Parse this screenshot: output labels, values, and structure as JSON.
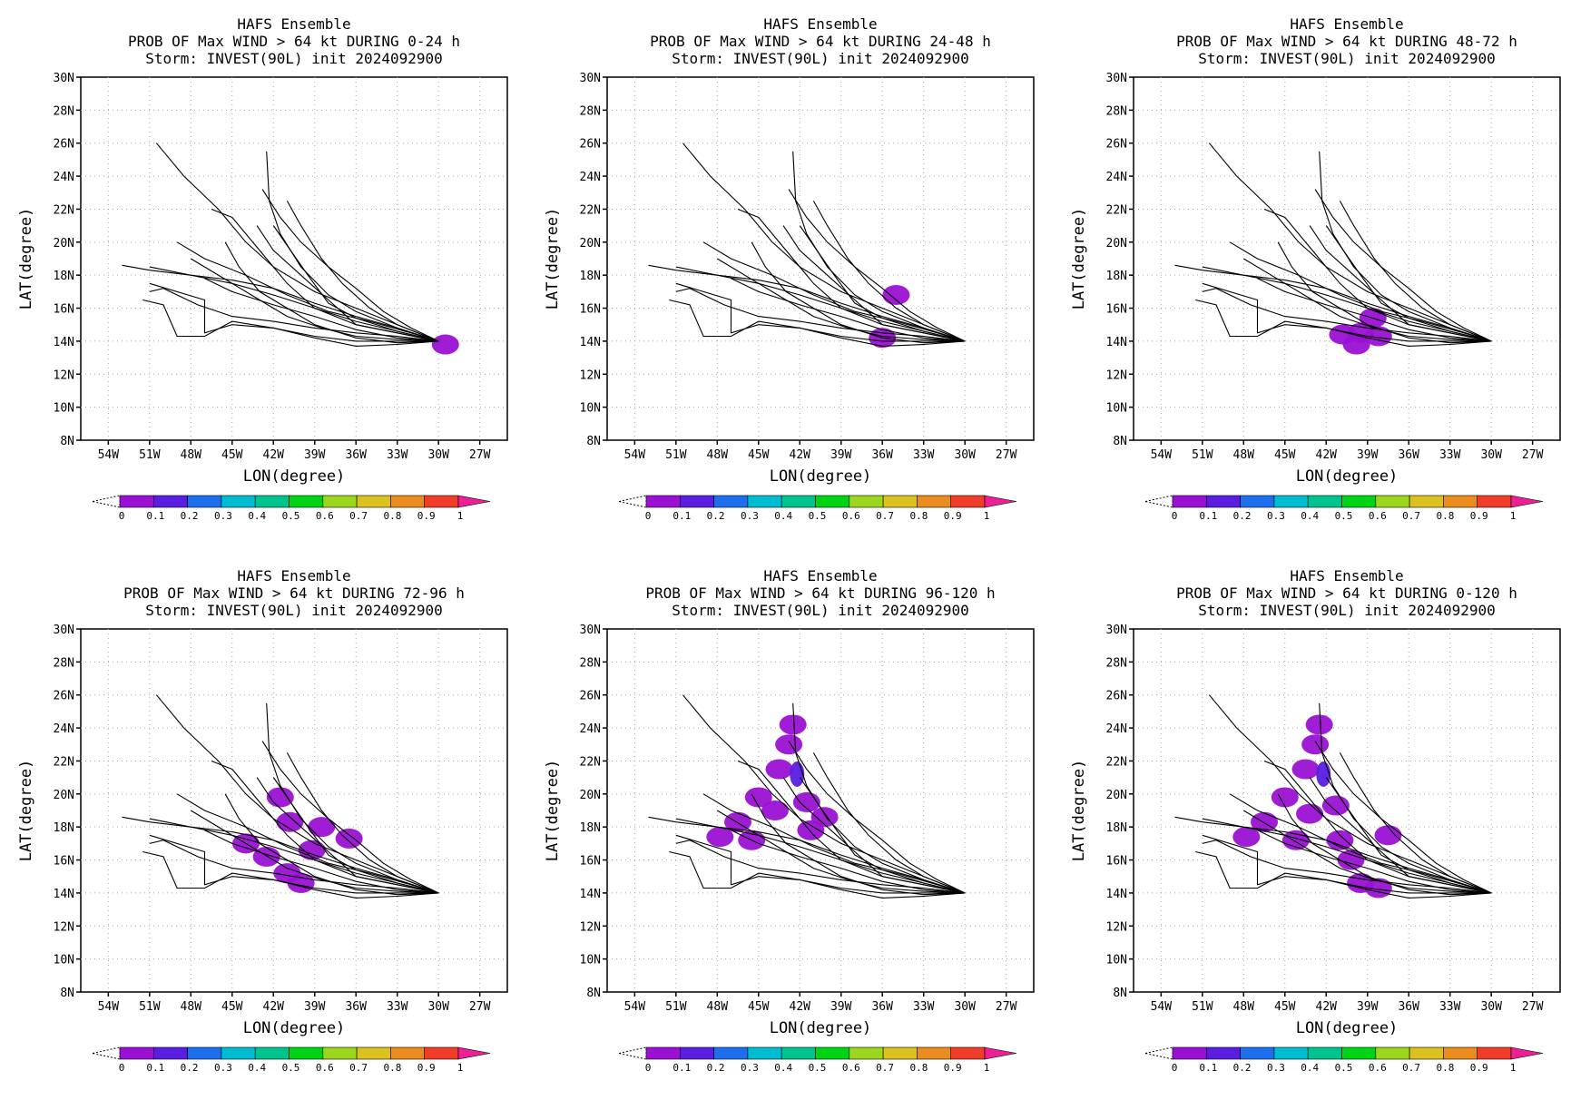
{
  "colors": {
    "track_line": "#000000",
    "grid": "#aaaaaa",
    "prob_fill": "#9b11d4",
    "prob_fill_high": "#5a1ee0"
  },
  "colorbar": {
    "labels": [
      "0",
      "0.1",
      "0.2",
      "0.3",
      "0.4",
      "0.5",
      "0.6",
      "0.7",
      "0.8",
      "0.9",
      "1"
    ],
    "colors": [
      "#9b11d4",
      "#5a1ee0",
      "#1e6ef0",
      "#00bcd0",
      "#00c490",
      "#00d214",
      "#9ad71e",
      "#dcc21e",
      "#eb8c1e",
      "#f03c28"
    ],
    "over_color": "#eb2096"
  },
  "panels": [
    {
      "title": [
        "HAFS Ensemble",
        "PROB OF Max WIND > 64 kt DURING  0-24 h",
        "Storm: INVEST(90L) init 2024092900"
      ],
      "xlabel": "LON(degree)",
      "ylabel": "LAT(degree)",
      "x_ticks": [
        "54W",
        "51W",
        "48W",
        "45W",
        "42W",
        "39W",
        "36W",
        "33W",
        "30W",
        "27W"
      ],
      "y_ticks": [
        "30N",
        "28N",
        "26N",
        "24N",
        "22N",
        "20N",
        "18N",
        "16N",
        "14N",
        "12N",
        "10N",
        "8N"
      ]
    },
    {
      "title": [
        "HAFS Ensemble",
        "PROB OF Max WIND > 64 kt DURING 24-48 h",
        "Storm: INVEST(90L) init 2024092900"
      ],
      "xlabel": "LON(degree)",
      "ylabel": "LAT(degree)",
      "x_ticks": [
        "54W",
        "51W",
        "48W",
        "45W",
        "42W",
        "39W",
        "36W",
        "33W",
        "30W",
        "27W"
      ],
      "y_ticks": [
        "30N",
        "28N",
        "26N",
        "24N",
        "22N",
        "20N",
        "18N",
        "16N",
        "14N",
        "12N",
        "10N",
        "8N"
      ]
    },
    {
      "title": [
        "HAFS Ensemble",
        "PROB OF Max WIND > 64 kt DURING 48-72 h",
        "Storm: INVEST(90L) init 2024092900"
      ],
      "xlabel": "LON(degree)",
      "ylabel": "LAT(degree)",
      "x_ticks": [
        "54W",
        "51W",
        "48W",
        "45W",
        "42W",
        "39W",
        "36W",
        "33W",
        "30W",
        "27W"
      ],
      "y_ticks": [
        "30N",
        "28N",
        "26N",
        "24N",
        "22N",
        "20N",
        "18N",
        "16N",
        "14N",
        "12N",
        "10N",
        "8N"
      ]
    },
    {
      "title": [
        "HAFS Ensemble",
        "PROB OF Max WIND > 64 kt DURING 72-96 h",
        "Storm: INVEST(90L) init 2024092900"
      ],
      "xlabel": "LON(degree)",
      "ylabel": "LAT(degree)",
      "x_ticks": [
        "54W",
        "51W",
        "48W",
        "45W",
        "42W",
        "39W",
        "36W",
        "33W",
        "30W",
        "27W"
      ],
      "y_ticks": [
        "30N",
        "28N",
        "26N",
        "24N",
        "22N",
        "20N",
        "18N",
        "16N",
        "14N",
        "12N",
        "10N",
        "8N"
      ]
    },
    {
      "title": [
        "HAFS Ensemble",
        "PROB OF Max WIND > 64 kt DURING 96-120 h",
        "Storm: INVEST(90L) init 2024092900"
      ],
      "xlabel": "LON(degree)",
      "ylabel": "LAT(degree)",
      "x_ticks": [
        "54W",
        "51W",
        "48W",
        "45W",
        "42W",
        "39W",
        "36W",
        "33W",
        "30W",
        "27W"
      ],
      "y_ticks": [
        "30N",
        "28N",
        "26N",
        "24N",
        "22N",
        "20N",
        "18N",
        "16N",
        "14N",
        "12N",
        "10N",
        "8N"
      ]
    },
    {
      "title": [
        "HAFS Ensemble",
        "PROB OF Max WIND > 64 kt DURING 0-120 h",
        "Storm: INVEST(90L) init 2024092900"
      ],
      "xlabel": "LON(degree)",
      "ylabel": "LAT(degree)",
      "x_ticks": [
        "54W",
        "51W",
        "48W",
        "45W",
        "42W",
        "39W",
        "36W",
        "33W",
        "30W",
        "27W"
      ],
      "y_ticks": [
        "30N",
        "28N",
        "26N",
        "24N",
        "22N",
        "20N",
        "18N",
        "16N",
        "14N",
        "12N",
        "10N",
        "8N"
      ]
    }
  ],
  "chart_data": [
    {
      "type": "map",
      "title": "HAFS Ensemble PROB OF Max WIND > 64 kt DURING 0-24 h",
      "xlabel": "LON(degree)",
      "ylabel": "LAT(degree)",
      "xlim": [
        -56,
        -25
      ],
      "ylim": [
        8,
        30
      ],
      "grid": true,
      "tracks": [
        [
          [
            -30,
            14
          ],
          [
            -33,
            14.8
          ],
          [
            -36,
            15.5
          ],
          [
            -39,
            16.3
          ],
          [
            -42,
            17.2
          ],
          [
            -45,
            17.7
          ],
          [
            -48,
            18
          ],
          [
            -51,
            18.3
          ],
          [
            -53,
            18.6
          ]
        ],
        [
          [
            -30,
            14
          ],
          [
            -33,
            14.6
          ],
          [
            -36,
            15.2
          ],
          [
            -39,
            16
          ],
          [
            -42,
            16.8
          ],
          [
            -45,
            17.5
          ],
          [
            -48,
            18
          ],
          [
            -51,
            18.5
          ]
        ],
        [
          [
            -30,
            14
          ],
          [
            -33,
            15
          ],
          [
            -36,
            16
          ],
          [
            -39,
            17
          ],
          [
            -42,
            18.5
          ],
          [
            -44,
            20
          ],
          [
            -46,
            22
          ],
          [
            -48.5,
            24
          ],
          [
            -50.5,
            26
          ]
        ],
        [
          [
            -30,
            14
          ],
          [
            -33,
            14.8
          ],
          [
            -36,
            15.8
          ],
          [
            -38,
            16.8
          ],
          [
            -40,
            18.5
          ],
          [
            -41.5,
            20.5
          ],
          [
            -42.3,
            22.5
          ],
          [
            -42.5,
            25.5
          ]
        ],
        [
          [
            -30,
            14
          ],
          [
            -33,
            14.3
          ],
          [
            -36,
            14.5
          ],
          [
            -39,
            14.8
          ],
          [
            -42,
            15.2
          ],
          [
            -45,
            15.5
          ],
          [
            -47.5,
            16.2
          ],
          [
            -50,
            17.2
          ],
          [
            -51,
            17
          ]
        ],
        [
          [
            -30,
            14
          ],
          [
            -33,
            14
          ],
          [
            -36,
            14
          ],
          [
            -39,
            14.3
          ],
          [
            -42,
            14.8
          ],
          [
            -45,
            15
          ],
          [
            -47,
            14.5
          ],
          [
            -47,
            16.5
          ],
          [
            -51,
            17.5
          ]
        ],
        [
          [
            -30,
            14
          ],
          [
            -33,
            13.8
          ],
          [
            -36,
            13.7
          ],
          [
            -39,
            14.2
          ],
          [
            -42,
            14.8
          ],
          [
            -45,
            15.2
          ],
          [
            -47,
            14.3
          ],
          [
            -49,
            14.3
          ],
          [
            -50,
            16.2
          ],
          [
            -51.5,
            16.5
          ]
        ],
        [
          [
            -30,
            14
          ],
          [
            -33,
            14.5
          ],
          [
            -36,
            15
          ],
          [
            -39,
            16
          ],
          [
            -41,
            17.5
          ],
          [
            -43,
            19.5
          ],
          [
            -45,
            21.5
          ],
          [
            -46.5,
            22
          ]
        ],
        [
          [
            -30,
            14
          ],
          [
            -33,
            15
          ],
          [
            -35,
            16
          ],
          [
            -37,
            17.5
          ],
          [
            -38.5,
            19
          ],
          [
            -40,
            21
          ],
          [
            -41,
            22.5
          ]
        ],
        [
          [
            -30,
            14
          ],
          [
            -33,
            14.6
          ],
          [
            -36,
            15.4
          ],
          [
            -38,
            16.3
          ],
          [
            -39.5,
            18
          ],
          [
            -41,
            19.8
          ],
          [
            -42,
            21
          ]
        ],
        [
          [
            -30,
            14
          ],
          [
            -32,
            14.5
          ],
          [
            -35,
            15.2
          ],
          [
            -38,
            15.8
          ],
          [
            -41,
            16.8
          ],
          [
            -44,
            18
          ],
          [
            -47,
            19
          ],
          [
            -49,
            20
          ]
        ],
        [
          [
            -30,
            14
          ],
          [
            -33,
            14.2
          ],
          [
            -36,
            14.7
          ],
          [
            -39,
            15.5
          ],
          [
            -42,
            16.2
          ],
          [
            -45,
            17
          ],
          [
            -47,
            17.8
          ]
        ],
        [
          [
            -30,
            14
          ],
          [
            -33,
            13.9
          ],
          [
            -36,
            14.2
          ],
          [
            -39,
            15
          ],
          [
            -41,
            16
          ],
          [
            -43,
            17
          ],
          [
            -44.5,
            18.5
          ],
          [
            -45.5,
            20
          ]
        ],
        [
          [
            -30,
            14
          ],
          [
            -32,
            14.8
          ],
          [
            -34,
            15.8
          ],
          [
            -36,
            17.2
          ],
          [
            -38,
            18.5
          ],
          [
            -40,
            20
          ],
          [
            -41.5,
            21.5
          ],
          [
            -42.8,
            23.2
          ]
        ],
        [
          [
            -30,
            14
          ],
          [
            -33,
            14.5
          ],
          [
            -36,
            15
          ],
          [
            -38,
            16.5
          ],
          [
            -40,
            18
          ],
          [
            -42,
            19.5
          ],
          [
            -43.2,
            21
          ]
        ],
        [
          [
            -30,
            14
          ],
          [
            -33,
            14.1
          ],
          [
            -36,
            14.3
          ],
          [
            -38.5,
            14.8
          ],
          [
            -41,
            15.5
          ],
          [
            -43,
            16.5
          ],
          [
            -45,
            17.5
          ],
          [
            -48,
            19
          ]
        ]
      ],
      "prob_regions": [
        {
          "lon": -29.5,
          "lat": 13.8,
          "prob": 0.05
        }
      ]
    },
    {
      "type": "map",
      "title": "HAFS Ensemble PROB OF Max WIND > 64 kt DURING 24-48 h",
      "xlabel": "LON(degree)",
      "ylabel": "LAT(degree)",
      "xlim": [
        -56,
        -25
      ],
      "ylim": [
        8,
        30
      ],
      "grid": true,
      "prob_regions": [
        {
          "lon": -36,
          "lat": 14.2,
          "prob": 0.05
        },
        {
          "lon": -35,
          "lat": 16.8,
          "prob": 0.05
        }
      ]
    },
    {
      "type": "map",
      "title": "HAFS Ensemble PROB OF Max WIND > 64 kt DURING 48-72 h",
      "xlabel": "LON(degree)",
      "ylabel": "LAT(degree)",
      "xlim": [
        -56,
        -25
      ],
      "ylim": [
        8,
        30
      ],
      "grid": true,
      "prob_regions": [
        {
          "lon": -40.8,
          "lat": 14.4,
          "prob": 0.05
        },
        {
          "lon": -39.5,
          "lat": 14.5,
          "prob": 0.05
        },
        {
          "lon": -38.2,
          "lat": 14.3,
          "prob": 0.05
        },
        {
          "lon": -39.8,
          "lat": 13.8,
          "prob": 0.05
        },
        {
          "lon": -38.6,
          "lat": 15.4,
          "prob": 0.05
        }
      ]
    },
    {
      "type": "map",
      "title": "HAFS Ensemble PROB OF Max WIND > 64 kt DURING 72-96 h",
      "xlabel": "LON(degree)",
      "ylabel": "LAT(degree)",
      "xlim": [
        -56,
        -25
      ],
      "ylim": [
        8,
        30
      ],
      "grid": true,
      "prob_regions": [
        {
          "lon": -44,
          "lat": 17,
          "prob": 0.05
        },
        {
          "lon": -42.5,
          "lat": 16.2,
          "prob": 0.05
        },
        {
          "lon": -41,
          "lat": 15.2,
          "prob": 0.05
        },
        {
          "lon": -40,
          "lat": 14.6,
          "prob": 0.05
        },
        {
          "lon": -40.8,
          "lat": 18.3,
          "prob": 0.05
        },
        {
          "lon": -41.5,
          "lat": 19.8,
          "prob": 0.05
        },
        {
          "lon": -38.5,
          "lat": 18,
          "prob": 0.05
        },
        {
          "lon": -36.5,
          "lat": 17.3,
          "prob": 0.05
        },
        {
          "lon": -39.2,
          "lat": 16.6,
          "prob": 0.05
        }
      ]
    },
    {
      "type": "map",
      "title": "HAFS Ensemble PROB OF Max WIND > 64 kt DURING 96-120 h",
      "xlabel": "LON(degree)",
      "ylabel": "LAT(degree)",
      "xlim": [
        -56,
        -25
      ],
      "ylim": [
        8,
        30
      ],
      "grid": true,
      "prob_regions": [
        {
          "lon": -46.5,
          "lat": 18.3,
          "prob": 0.05
        },
        {
          "lon": -45,
          "lat": 19.8,
          "prob": 0.05
        },
        {
          "lon": -45.5,
          "lat": 17.2,
          "prob": 0.05
        },
        {
          "lon": -43.5,
          "lat": 21.5,
          "prob": 0.05
        },
        {
          "lon": -43.8,
          "lat": 19,
          "prob": 0.05
        },
        {
          "lon": -42.8,
          "lat": 23,
          "prob": 0.05
        },
        {
          "lon": -42.2,
          "lat": 21.2,
          "prob": 0.12
        },
        {
          "lon": -41.5,
          "lat": 19.5,
          "prob": 0.05
        },
        {
          "lon": -41.2,
          "lat": 17.8,
          "prob": 0.05
        },
        {
          "lon": -40.2,
          "lat": 18.6,
          "prob": 0.05
        },
        {
          "lon": -47.8,
          "lat": 17.4,
          "prob": 0.05
        },
        {
          "lon": -42.5,
          "lat": 24.2,
          "prob": 0.05
        }
      ]
    },
    {
      "type": "map",
      "title": "HAFS Ensemble PROB OF Max WIND > 64 kt DURING 0-120 h",
      "xlabel": "LON(degree)",
      "ylabel": "LAT(degree)",
      "xlim": [
        -56,
        -25
      ],
      "ylim": [
        8,
        30
      ],
      "grid": true,
      "prob_regions": [
        {
          "lon": -46.5,
          "lat": 18.3,
          "prob": 0.05
        },
        {
          "lon": -45,
          "lat": 19.8,
          "prob": 0.05
        },
        {
          "lon": -44.2,
          "lat": 17.2,
          "prob": 0.05
        },
        {
          "lon": -43.5,
          "lat": 21.5,
          "prob": 0.05
        },
        {
          "lon": -43.2,
          "lat": 18.8,
          "prob": 0.05
        },
        {
          "lon": -42.8,
          "lat": 23,
          "prob": 0.05
        },
        {
          "lon": -42.2,
          "lat": 21.2,
          "prob": 0.12
        },
        {
          "lon": -41.3,
          "lat": 19.3,
          "prob": 0.05
        },
        {
          "lon": -41,
          "lat": 17.2,
          "prob": 0.05
        },
        {
          "lon": -40.2,
          "lat": 16,
          "prob": 0.05
        },
        {
          "lon": -39.5,
          "lat": 14.6,
          "prob": 0.05
        },
        {
          "lon": -38.2,
          "lat": 14.3,
          "prob": 0.05
        },
        {
          "lon": -37.5,
          "lat": 17.5,
          "prob": 0.05
        },
        {
          "lon": -47.8,
          "lat": 17.4,
          "prob": 0.05
        },
        {
          "lon": -42.5,
          "lat": 24.2,
          "prob": 0.05
        }
      ]
    }
  ]
}
